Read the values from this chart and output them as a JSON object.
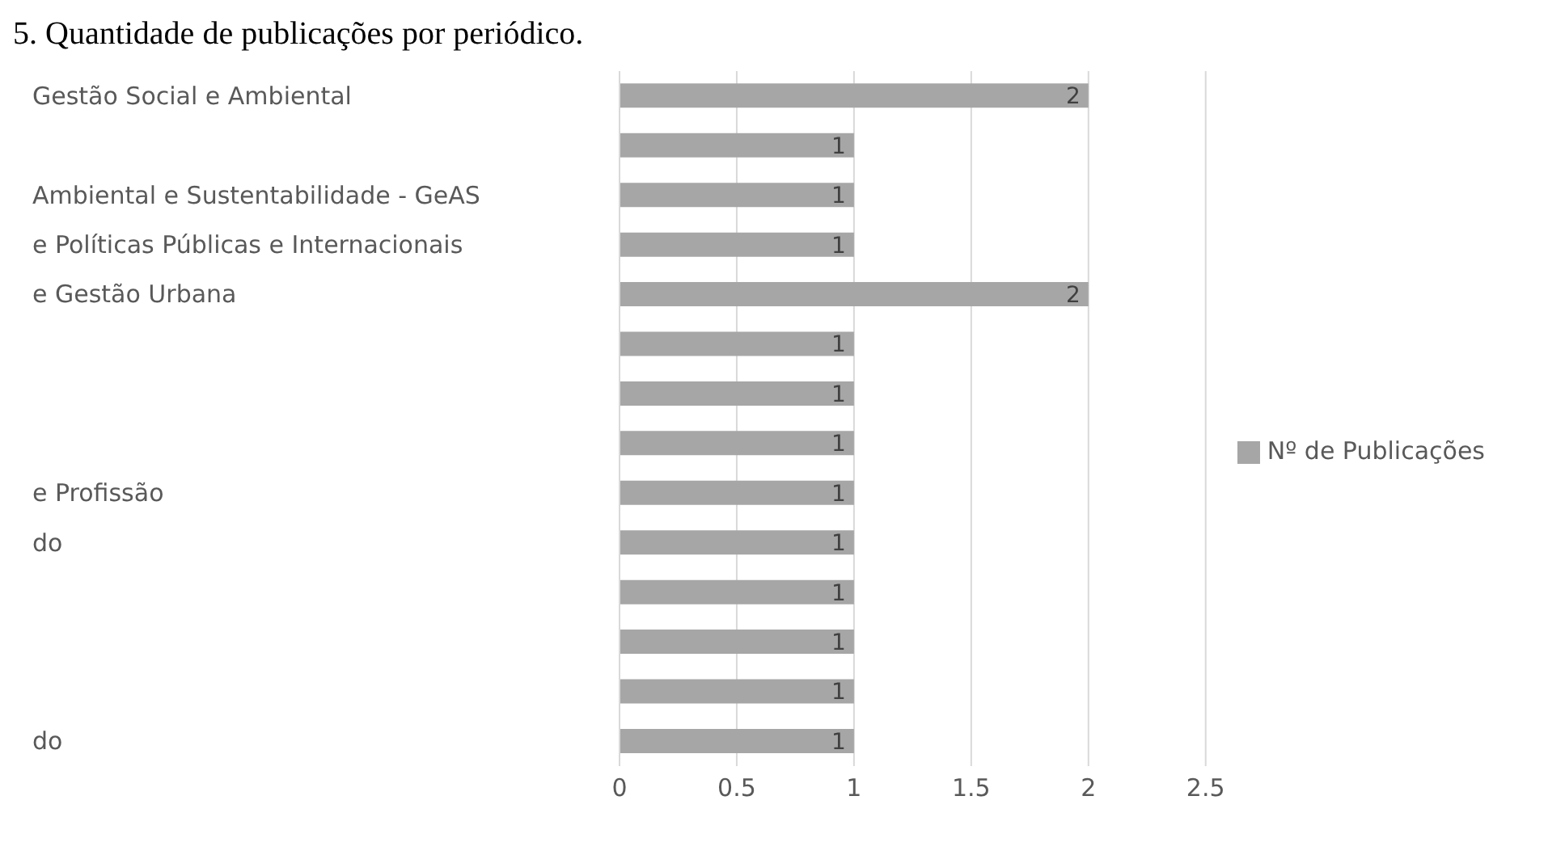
{
  "chart_data": {
    "type": "bar",
    "orientation": "horizontal",
    "title": "5. Quantidade de publicações por periódico.",
    "categories": [
      "Gestão Social e Ambiental",
      null,
      "Ambiental e Sustentabilidade - GeAS",
      "e Políticas Públicas e Internacionais",
      "e Gestão Urbana",
      null,
      null,
      null,
      "e Profissão",
      "do",
      null,
      null,
      null,
      "do"
    ],
    "series": [
      {
        "name": "Nº de Publicações",
        "color": "#a6a6a6",
        "values": [
          2,
          1,
          1,
          1,
          2,
          1,
          1,
          1,
          1,
          1,
          1,
          1,
          1,
          1
        ]
      }
    ],
    "xlim": [
      0,
      2.5
    ],
    "xticks": [
      0,
      0.5,
      1,
      1.5,
      2,
      2.5
    ],
    "grid": "x",
    "legend": "right",
    "data_labels": true
  }
}
